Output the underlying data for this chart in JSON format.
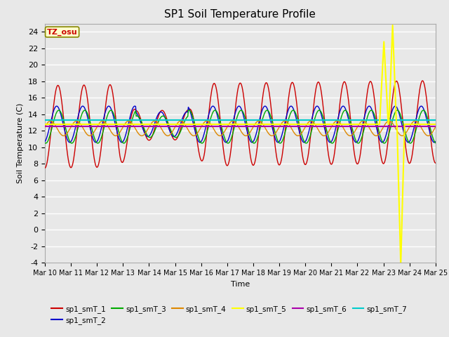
{
  "title": "SP1 Soil Temperature Profile",
  "xlabel": "Time",
  "ylabel": "Soil Temperature (C)",
  "ylim": [
    -4,
    25
  ],
  "yticks": [
    -4,
    -2,
    0,
    2,
    4,
    6,
    8,
    10,
    12,
    14,
    16,
    18,
    20,
    22,
    24
  ],
  "tz_label": "TZ_osu",
  "fig_bg_color": "#e8e8e8",
  "plot_bg_color": "#e8e8e8",
  "grid_color": "#cccccc",
  "series_colors": {
    "sp1_smT_1": "#cc0000",
    "sp1_smT_2": "#0000cc",
    "sp1_smT_3": "#00aa00",
    "sp1_smT_4": "#dd8800",
    "sp1_smT_5": "#ffff00",
    "sp1_smT_6": "#aa00aa",
    "sp1_smT_7": "#00cccc"
  },
  "start_day": 10,
  "n_days": 15
}
